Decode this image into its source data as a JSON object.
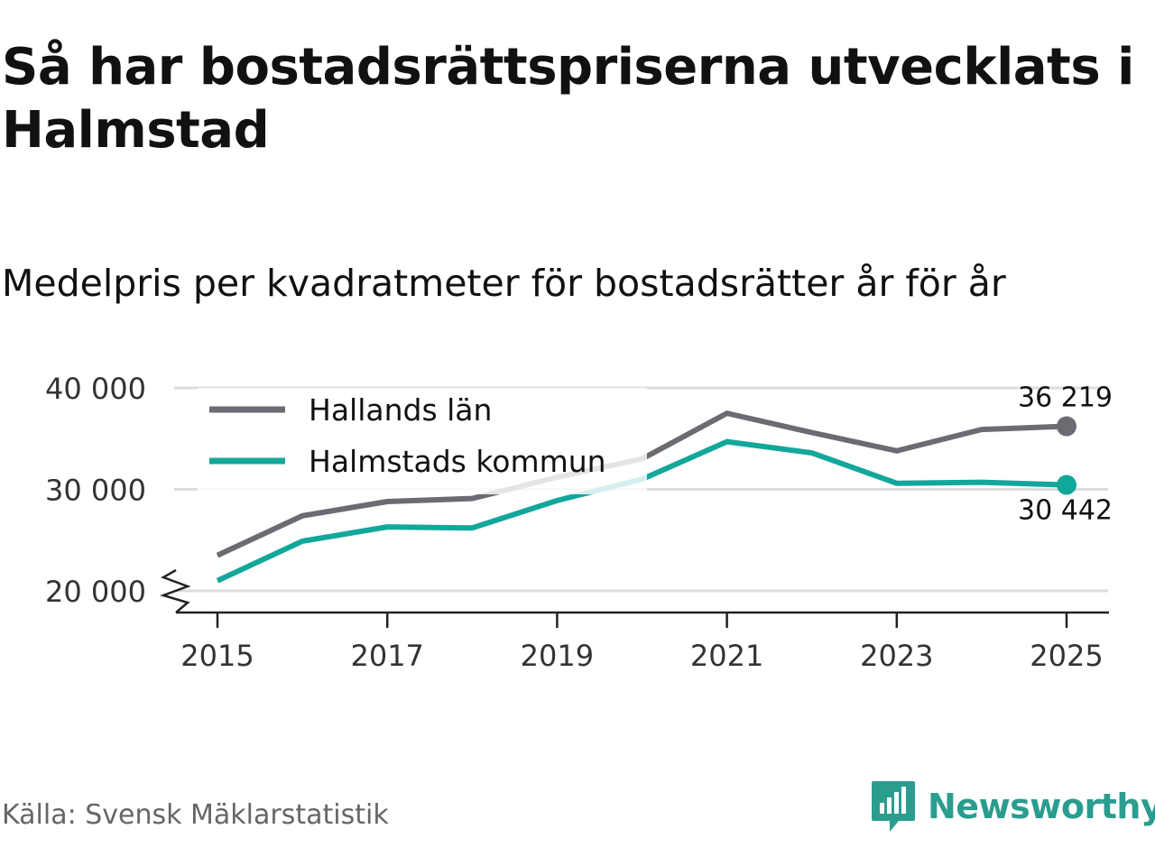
{
  "title": "Så har bostadsrättspriserna utvecklats i Halmstad",
  "subtitle": "Medelpris per kvadratmeter för bostadsrätter år för år",
  "source": "Källa: Svensk Mäklarstatistik",
  "brand": "Newsworthy",
  "colors": {
    "gray": "#6d6a72",
    "teal": "#13a79b",
    "grid": "#dddddd",
    "axis": "#222222"
  },
  "chart_data": {
    "type": "line",
    "x": [
      2015,
      2016,
      2017,
      2018,
      2019,
      2020,
      2021,
      2022,
      2023,
      2024,
      2025
    ],
    "x_tick_labels": [
      "2015",
      "2017",
      "2019",
      "2021",
      "2023",
      "2025"
    ],
    "y_tick_labels": [
      "40 000",
      "30 000",
      "20 000"
    ],
    "y_ticks": [
      40000,
      30000,
      20000
    ],
    "ylim": [
      20000,
      40000
    ],
    "series": [
      {
        "name": "Hallands län",
        "color": "#6d6a72",
        "values": [
          23500,
          27400,
          28800,
          29100,
          31200,
          33000,
          37500,
          35600,
          33800,
          35900,
          36219
        ],
        "end_label": "36 219"
      },
      {
        "name": "Halmstads kommun",
        "color": "#13a79b",
        "values": [
          21000,
          24900,
          26300,
          26200,
          28900,
          31000,
          34700,
          33600,
          30600,
          30700,
          30442
        ],
        "end_label": "30 442"
      }
    ],
    "legend": "top-left",
    "grid": true,
    "axis_break": true
  }
}
